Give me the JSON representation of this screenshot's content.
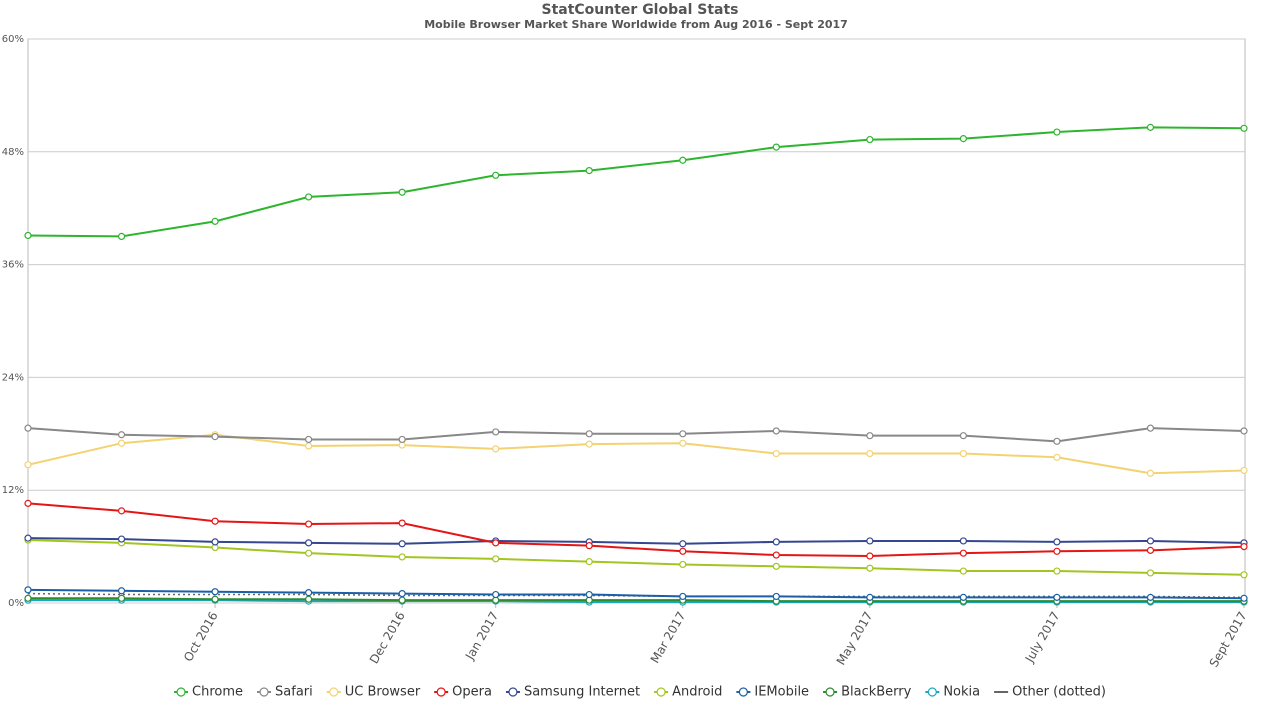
{
  "chart_data": {
    "type": "line",
    "title": "StatCounter Global Stats",
    "subtitle": "Mobile Browser Market Share Worldwide from Aug 2016 - Sept 2017",
    "categories": [
      null,
      null,
      "Oct 2016",
      null,
      "Dec 2016",
      "Jan 2017",
      null,
      "Mar 2017",
      null,
      "May 2017",
      null,
      "July 2017",
      null,
      "Sept 2017"
    ],
    "ylim": [
      0,
      60
    ],
    "yticks": [
      {
        "value": 0,
        "label": "0%"
      },
      {
        "value": 12,
        "label": "12%"
      },
      {
        "value": 24,
        "label": "24%"
      },
      {
        "value": 36,
        "label": "36%"
      },
      {
        "value": 48,
        "label": "48%"
      },
      {
        "value": 60,
        "label": "60%"
      }
    ],
    "grid": true,
    "legend": "bottom",
    "series": [
      {
        "name": "Chrome",
        "color": "#2db52d",
        "values": [
          39.1,
          39.0,
          40.6,
          43.2,
          43.7,
          45.5,
          46.0,
          47.1,
          48.5,
          49.3,
          49.4,
          50.1,
          50.6,
          50.5
        ]
      },
      {
        "name": "Safari",
        "color": "#888888",
        "values": [
          18.6,
          17.9,
          17.7,
          17.4,
          17.4,
          18.2,
          18.0,
          18.0,
          18.3,
          17.8,
          17.8,
          17.2,
          18.6,
          18.3
        ]
      },
      {
        "name": "UC Browser",
        "color": "#f3d271",
        "values": [
          14.7,
          17.0,
          17.9,
          16.7,
          16.8,
          16.4,
          16.9,
          17.0,
          15.9,
          15.9,
          15.9,
          15.5,
          13.8,
          14.1
        ]
      },
      {
        "name": "Opera",
        "color": "#e51515",
        "values": [
          10.6,
          9.8,
          8.7,
          8.4,
          8.5,
          6.4,
          6.1,
          5.5,
          5.1,
          5.0,
          5.3,
          5.5,
          5.6,
          6.0
        ]
      },
      {
        "name": "Samsung Internet",
        "color": "#34478f",
        "values": [
          6.9,
          6.8,
          6.5,
          6.4,
          6.3,
          6.6,
          6.5,
          6.3,
          6.5,
          6.6,
          6.6,
          6.5,
          6.6,
          6.4
        ]
      },
      {
        "name": "Android",
        "color": "#a3c520",
        "values": [
          6.7,
          6.4,
          5.9,
          5.3,
          4.9,
          4.7,
          4.4,
          4.1,
          3.9,
          3.7,
          3.4,
          3.4,
          3.2,
          3.0
        ]
      },
      {
        "name": "IEMobile",
        "color": "#1a5fa8",
        "values": [
          1.4,
          1.3,
          1.2,
          1.1,
          1.0,
          0.9,
          0.9,
          0.7,
          0.7,
          0.6,
          0.6,
          0.6,
          0.6,
          0.5
        ]
      },
      {
        "name": "BlackBerry",
        "color": "#2e8b2e",
        "values": [
          0.5,
          0.5,
          0.4,
          0.4,
          0.3,
          0.3,
          0.3,
          0.3,
          0.2,
          0.2,
          0.2,
          0.2,
          0.2,
          0.2
        ]
      },
      {
        "name": "Nokia",
        "color": "#19a8c4",
        "values": [
          0.3,
          0.3,
          0.3,
          0.2,
          0.2,
          0.2,
          0.1,
          0.1,
          0.1,
          0.1,
          0.1,
          0.1,
          0.1,
          0.1
        ]
      },
      {
        "name": "Other (dotted)",
        "color": "#666666",
        "line_style": "dotted",
        "values": [
          1.0,
          0.9,
          0.9,
          0.9,
          0.8,
          0.8,
          0.8,
          0.7,
          0.7,
          0.7,
          0.7,
          0.7,
          0.7,
          0.6
        ]
      }
    ]
  }
}
